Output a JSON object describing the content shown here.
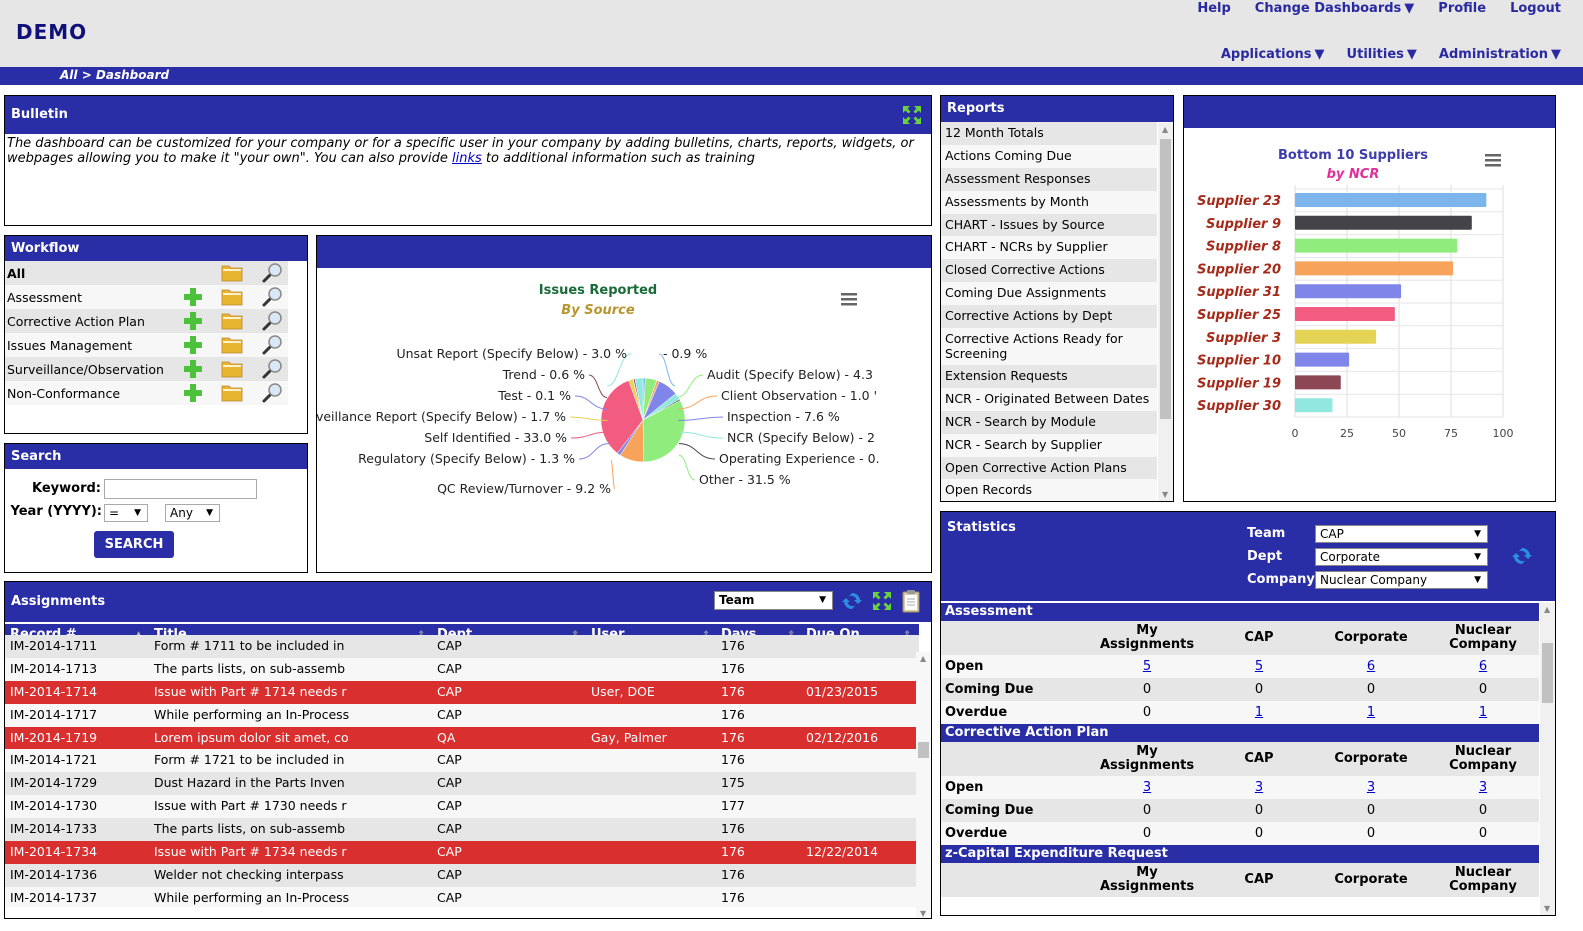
{
  "header": {
    "logo": "DEMO",
    "top_links": [
      "Help",
      "Change Dashboards",
      "Profile",
      "Logout"
    ],
    "nav_links": [
      "Applications",
      "Utilities",
      "Administration"
    ],
    "breadcrumb": "All > Dashboard"
  },
  "bulletin": {
    "title": "Bulletin",
    "text_before": "The dashboard can be customized for your company or for a specific user in your company by adding bulletins, charts, reports, widgets, or webpages allowing you to make it \"your own\". You can also provide ",
    "link": "links",
    "text_after": " to additional information such as training"
  },
  "workflow": {
    "title": "Workflow",
    "items": [
      {
        "label": "All",
        "bold": true,
        "add": false
      },
      {
        "label": "Assessment",
        "add": true
      },
      {
        "label": "Corrective Action Plan",
        "add": true
      },
      {
        "label": "Issues Management",
        "add": true
      },
      {
        "label": "Surveillance/Observation",
        "add": true
      },
      {
        "label": "Non-Conformance",
        "add": true
      }
    ]
  },
  "search": {
    "title": "Search",
    "keyword_label": "Keyword:",
    "keyword_value": "",
    "year_label": "Year (YYYY):",
    "op_value": "=",
    "year_value": "Any",
    "button": "SEARCH"
  },
  "chart_data": [
    {
      "type": "pie",
      "title": "Issues Reported",
      "subtitle": "By Source",
      "labels": [
        "Unsat Report (Specify Below) - 3.0 %",
        "Trend - 0.6 %",
        "Test - 0.1 %",
        "veillance Report (Specify Below) - 1.7 %",
        "Self Identified - 33.0 %",
        "Regulatory (Specify Below) - 1.3 %",
        "QC Review/Turnover - 9.2 %",
        "Other - 31.5 %",
        "Operating Experience - 0.",
        "NCR (Specify Below) - 2",
        "Inspection - 7.6 %",
        "Client Observation - 1.0 '",
        "Audit (Specify Below) - 4.3",
        "- 0.9 %"
      ],
      "slices": [
        {
          "name": "",
          "value": 0.9,
          "color": "#7cb5ec"
        },
        {
          "name": "Audit (Specify Below)",
          "value": 4.3,
          "color": "#90ed7d"
        },
        {
          "name": "Client Observation",
          "value": 1.0,
          "color": "#f7a35c"
        },
        {
          "name": "Inspection",
          "value": 7.6,
          "color": "#8085e9"
        },
        {
          "name": "NCR (Specify Below)",
          "value": 2.5,
          "color": "#91e8e1"
        },
        {
          "name": "Operating Experience",
          "value": 0.5,
          "color": "#434348"
        },
        {
          "name": "Other",
          "value": 31.5,
          "color": "#90ed7d"
        },
        {
          "name": "QC Review/Turnover",
          "value": 9.2,
          "color": "#f7a35c"
        },
        {
          "name": "Regulatory (Specify Below)",
          "value": 1.3,
          "color": "#8085e9"
        },
        {
          "name": "Self Identified",
          "value": 33.0,
          "color": "#f15c80"
        },
        {
          "name": "Surveillance Report (Specify Below)",
          "value": 1.7,
          "color": "#e4d354"
        },
        {
          "name": "Test",
          "value": 0.1,
          "color": "#e4d354"
        },
        {
          "name": "Trend",
          "value": 0.6,
          "color": "#8d4653"
        },
        {
          "name": "Unsat Report (Specify Below)",
          "value": 3.0,
          "color": "#91e8e1"
        }
      ]
    },
    {
      "type": "bar",
      "orientation": "horizontal",
      "title": "Bottom 10 Suppliers",
      "subtitle": "by NCR",
      "categories": [
        "Supplier 23",
        "Supplier 9",
        "Supplier 8",
        "Supplier 20",
        "Supplier 31",
        "Supplier 25",
        "Supplier 3",
        "Supplier 10",
        "Supplier 19",
        "Supplier 30"
      ],
      "values": [
        92,
        85,
        78,
        76,
        51,
        48,
        39,
        26,
        22,
        18
      ],
      "colors": [
        "#7cb5ec",
        "#434348",
        "#90ed7d",
        "#f7a35c",
        "#8085e9",
        "#f15c80",
        "#e4d354",
        "#8085e9",
        "#8d4653",
        "#91e8e1"
      ],
      "xlim": [
        0,
        100
      ],
      "ticks": [
        "0",
        "25",
        "50",
        "75",
        "100"
      ],
      "grid": true
    }
  ],
  "reports": {
    "title": "Reports",
    "items": [
      "12 Month Totals",
      "Actions Coming Due",
      "Assessment Responses",
      "Assessments by Month",
      "CHART - Issues by Source",
      "CHART - NCRs by Supplier",
      "Closed Corrective Actions",
      "Coming Due Assignments",
      "Corrective Actions by Dept",
      "Corrective Actions Ready for Screening",
      "Extension Requests",
      "NCR - Originated Between Dates",
      "NCR - Search by Module",
      "NCR - Search by Supplier",
      "Open Corrective Action Plans",
      "Open Records"
    ]
  },
  "assignments": {
    "title": "Assignments",
    "filter": "Team",
    "columns": [
      "Record #",
      "Title",
      "Dept",
      "User",
      "Days",
      "Due On"
    ],
    "rows": [
      {
        "record": "IM-2014-1711",
        "title": "Form # 1711 to be included in",
        "dept": "CAP",
        "user": "",
        "days": "176",
        "due": "",
        "overdue": false
      },
      {
        "record": "IM-2014-1713",
        "title": "The parts lists, on sub-assemb",
        "dept": "CAP",
        "user": "",
        "days": "176",
        "due": "",
        "overdue": false
      },
      {
        "record": "IM-2014-1714",
        "title": "Issue with Part # 1714 needs r",
        "dept": "CAP",
        "user": "User, DOE",
        "days": "176",
        "due": "01/23/2015",
        "overdue": true
      },
      {
        "record": "IM-2014-1717",
        "title": "While performing an In-Process",
        "dept": "CAP",
        "user": "",
        "days": "176",
        "due": "",
        "overdue": false
      },
      {
        "record": "IM-2014-1719",
        "title": "Lorem ipsum dolor sit amet, co",
        "dept": "QA",
        "user": "Gay, Palmer",
        "days": "176",
        "due": "02/12/2016",
        "overdue": true
      },
      {
        "record": "IM-2014-1721",
        "title": "Form # 1721 to be included in",
        "dept": "CAP",
        "user": "",
        "days": "176",
        "due": "",
        "overdue": false
      },
      {
        "record": "IM-2014-1729",
        "title": "Dust Hazard in the Parts Inven",
        "dept": "CAP",
        "user": "",
        "days": "175",
        "due": "",
        "overdue": false
      },
      {
        "record": "IM-2014-1730",
        "title": "Issue with Part # 1730 needs r",
        "dept": "CAP",
        "user": "",
        "days": "177",
        "due": "",
        "overdue": false
      },
      {
        "record": "IM-2014-1733",
        "title": "The parts lists, on sub-assemb",
        "dept": "CAP",
        "user": "",
        "days": "176",
        "due": "",
        "overdue": false
      },
      {
        "record": "IM-2014-1734",
        "title": "Issue with Part # 1734 needs r",
        "dept": "CAP",
        "user": "",
        "days": "176",
        "due": "12/22/2014",
        "overdue": true
      },
      {
        "record": "IM-2014-1736",
        "title": "Welder not checking interpass",
        "dept": "CAP",
        "user": "",
        "days": "176",
        "due": "",
        "overdue": false
      },
      {
        "record": "IM-2014-1737",
        "title": "While performing an In-Process",
        "dept": "CAP",
        "user": "",
        "days": "176",
        "due": "",
        "overdue": false
      }
    ]
  },
  "statistics": {
    "title": "Statistics",
    "team_label": "Team",
    "team_value": "CAP",
    "dept_label": "Dept",
    "dept_value": "Corporate",
    "company_label": "Company",
    "company_value": "Nuclear Company",
    "col_headers": [
      "My Assignments",
      "CAP",
      "Corporate",
      "Nuclear Company"
    ],
    "sections": [
      {
        "name": "Assessment",
        "rows": [
          {
            "label": "Open",
            "values": [
              "5",
              "5",
              "6",
              "6"
            ],
            "links": [
              true,
              true,
              true,
              true
            ]
          },
          {
            "label": "Coming Due",
            "values": [
              "0",
              "0",
              "0",
              "0"
            ],
            "links": [
              false,
              false,
              false,
              false
            ]
          },
          {
            "label": "Overdue",
            "values": [
              "0",
              "1",
              "1",
              "1"
            ],
            "links": [
              false,
              true,
              true,
              true
            ]
          }
        ]
      },
      {
        "name": "Corrective Action Plan",
        "rows": [
          {
            "label": "Open",
            "values": [
              "3",
              "3",
              "3",
              "3"
            ],
            "links": [
              true,
              true,
              true,
              true
            ]
          },
          {
            "label": "Coming Due",
            "values": [
              "0",
              "0",
              "0",
              "0"
            ],
            "links": [
              false,
              false,
              false,
              false
            ]
          },
          {
            "label": "Overdue",
            "values": [
              "0",
              "0",
              "0",
              "0"
            ],
            "links": [
              false,
              false,
              false,
              false
            ]
          }
        ]
      },
      {
        "name": "z-Capital Expenditure Request",
        "rows": []
      }
    ]
  },
  "colors": {
    "brand": "#2a2ea6",
    "overdue": "#d92f2f",
    "logo": "#10107a"
  }
}
